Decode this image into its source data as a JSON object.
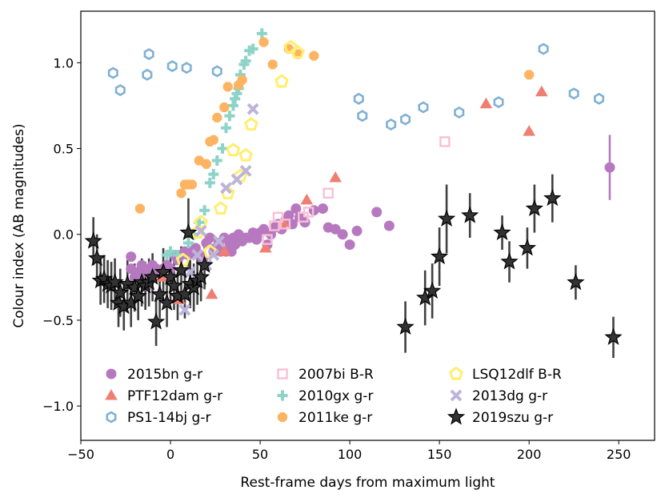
{
  "chart_data": {
    "type": "scatter",
    "title": "",
    "xlabel": "Rest-frame days from maximum light",
    "ylabel": "Colour index (AB magnitudes)",
    "xlim": [
      -50,
      270
    ],
    "ylim": [
      -1.2,
      1.3
    ],
    "xticks": [
      -50,
      0,
      50,
      100,
      150,
      200,
      250
    ],
    "yticks": [
      -1.0,
      -0.5,
      0.0,
      0.5,
      1.0
    ],
    "xtick_labels": [
      "−50",
      "0",
      "50",
      "100",
      "150",
      "200",
      "250"
    ],
    "ytick_labels": [
      "−1.0",
      "−0.5",
      "0.0",
      "0.5",
      "1.0"
    ],
    "grid": false,
    "legend_position": "lower-left",
    "series": [
      {
        "name": "2015bn g-r",
        "marker": "circle",
        "color": "#b679c0",
        "hollow": false,
        "points": [
          [
            -22,
            -0.13
          ],
          [
            -22,
            -0.2
          ],
          [
            -20,
            -0.25
          ],
          [
            -18,
            -0.22
          ],
          [
            -16,
            -0.18
          ],
          [
            -15,
            -0.22
          ],
          [
            -14,
            -0.25
          ],
          [
            -13,
            -0.3
          ],
          [
            -12,
            -0.2
          ],
          [
            -10,
            -0.18
          ],
          [
            -8,
            -0.2
          ],
          [
            -6,
            -0.22
          ],
          [
            -4,
            -0.2
          ],
          [
            -2,
            -0.18
          ],
          [
            0,
            -0.2
          ],
          [
            2,
            -0.12
          ],
          [
            4,
            -0.15
          ],
          [
            6,
            -0.12
          ],
          [
            8,
            -0.1
          ],
          [
            10,
            -0.12
          ],
          [
            12,
            -0.1
          ],
          [
            14,
            -0.08
          ],
          [
            16,
            -0.12
          ],
          [
            18,
            -0.15
          ],
          [
            20,
            -0.05
          ],
          [
            22,
            -0.02
          ],
          [
            24,
            -0.1
          ],
          [
            25,
            -0.08
          ],
          [
            27,
            -0.05
          ],
          [
            28,
            -0.1
          ],
          [
            30,
            -0.02
          ],
          [
            31,
            -0.1
          ],
          [
            33,
            -0.05
          ],
          [
            34,
            -0.1
          ],
          [
            35,
            -0.02
          ],
          [
            36,
            -0.06
          ],
          [
            38,
            0.0
          ],
          [
            40,
            -0.04
          ],
          [
            42,
            -0.02
          ],
          [
            44,
            -0.02
          ],
          [
            46,
            0.01
          ],
          [
            48,
            -0.03
          ],
          [
            50,
            0.01
          ],
          [
            52,
            0.03
          ],
          [
            54,
            -0.06
          ],
          [
            56,
            0.0
          ],
          [
            58,
            0.04
          ],
          [
            60,
            0.06
          ],
          [
            62,
            0.03
          ],
          [
            64,
            0.08
          ],
          [
            66,
            0.11
          ],
          [
            68,
            0.06
          ],
          [
            70,
            0.15
          ],
          [
            72,
            0.1
          ],
          [
            75,
            0.07
          ],
          [
            80,
            0.14
          ],
          [
            85,
            0.15
          ],
          [
            88,
            0.04
          ],
          [
            92,
            0.03
          ],
          [
            96,
            0.0
          ],
          [
            100,
            -0.06
          ],
          [
            104,
            0.02
          ],
          [
            115,
            0.13
          ],
          [
            122,
            0.05
          ],
          [
            245,
            0.39
          ]
        ],
        "errors": [
          [
            245,
            0.19
          ]
        ]
      },
      {
        "name": "PTF12dam g-r",
        "marker": "triangle",
        "color": "#ef7f72",
        "hollow": false,
        "points": [
          [
            -5,
            -0.25
          ],
          [
            5,
            -0.38
          ],
          [
            23,
            -0.35
          ],
          [
            30,
            -0.1
          ],
          [
            53,
            -0.08
          ],
          [
            63,
            0.07
          ],
          [
            76,
            0.2
          ],
          [
            92,
            0.33
          ],
          [
            176,
            0.76
          ],
          [
            200,
            0.6
          ],
          [
            207,
            0.83
          ]
        ]
      },
      {
        "name": "PS1-14bj g-r",
        "marker": "hexagon",
        "color": "#80b1d3",
        "hollow": true,
        "points": [
          [
            -32,
            0.94
          ],
          [
            -28,
            0.84
          ],
          [
            -13,
            0.93
          ],
          [
            -12,
            1.05
          ],
          [
            1,
            0.98
          ],
          [
            9,
            0.97
          ],
          [
            26,
            0.95
          ],
          [
            105,
            0.79
          ],
          [
            107,
            0.69
          ],
          [
            123,
            0.64
          ],
          [
            131,
            0.67
          ],
          [
            141,
            0.74
          ],
          [
            161,
            0.71
          ],
          [
            183,
            0.77
          ],
          [
            208,
            1.08
          ],
          [
            225,
            0.82
          ],
          [
            239,
            0.79
          ]
        ]
      },
      {
        "name": "2007bi B-R",
        "marker": "square",
        "color": "#f9bfd5",
        "hollow": true,
        "points": [
          [
            54,
            -0.03
          ],
          [
            58,
            0.05
          ],
          [
            60,
            0.1
          ],
          [
            64,
            0.06
          ],
          [
            74,
            0.1
          ],
          [
            77,
            0.13
          ],
          [
            88,
            0.24
          ],
          [
            153,
            0.54
          ]
        ]
      },
      {
        "name": "2010gx g-r",
        "marker": "plus",
        "color": "#8dd3c7",
        "hollow": false,
        "points": [
          [
            -2,
            -0.12
          ],
          [
            0,
            -0.1
          ],
          [
            4,
            -0.12
          ],
          [
            10,
            -0.05
          ],
          [
            13,
            0.0
          ],
          [
            16,
            0.07
          ],
          [
            19,
            0.14
          ],
          [
            22,
            0.3
          ],
          [
            24,
            0.35
          ],
          [
            26,
            0.43
          ],
          [
            29,
            0.5
          ],
          [
            31,
            0.62
          ],
          [
            33,
            0.69
          ],
          [
            35,
            0.75
          ],
          [
            36,
            0.79
          ],
          [
            37,
            0.82
          ],
          [
            38,
            0.85
          ],
          [
            39,
            0.93
          ],
          [
            41,
            0.99
          ],
          [
            42,
            1.01
          ],
          [
            44,
            1.07
          ],
          [
            46,
            1.08
          ],
          [
            51,
            1.17
          ]
        ]
      },
      {
        "name": "2011ke g-r",
        "marker": "octagon",
        "color": "#fdb462",
        "hollow": false,
        "points": [
          [
            -17,
            0.15
          ],
          [
            6,
            0.24
          ],
          [
            8,
            0.29
          ],
          [
            10,
            0.29
          ],
          [
            12,
            0.29
          ],
          [
            16,
            0.43
          ],
          [
            20,
            0.41
          ],
          [
            22,
            0.54
          ],
          [
            24,
            0.55
          ],
          [
            26,
            0.68
          ],
          [
            30,
            0.74
          ],
          [
            32,
            0.86
          ],
          [
            38,
            0.87
          ],
          [
            40,
            0.9
          ],
          [
            52,
            1.12
          ],
          [
            57,
            0.99
          ],
          [
            66,
            1.08
          ],
          [
            71,
            1.05
          ],
          [
            80,
            1.04
          ],
          [
            200,
            0.93
          ]
        ]
      },
      {
        "name": "LSQ12dlf B-R",
        "marker": "pentagon",
        "color": "#ffee6f",
        "hollow": true,
        "points": [
          [
            7,
            -0.15
          ],
          [
            15,
            0.01
          ],
          [
            17,
            0.07
          ],
          [
            22,
            -0.1
          ],
          [
            28,
            0.15
          ],
          [
            32,
            0.24
          ],
          [
            35,
            0.49
          ],
          [
            39,
            0.34
          ],
          [
            42,
            0.46
          ],
          [
            45,
            0.64
          ],
          [
            62,
            0.89
          ],
          [
            67,
            1.09
          ],
          [
            71,
            1.06
          ]
        ]
      },
      {
        "name": "2013dg g-r",
        "marker": "x",
        "color": "#bdb4da",
        "hollow": false,
        "points": [
          [
            8,
            -0.44
          ],
          [
            11,
            -0.22
          ],
          [
            15,
            -0.12
          ],
          [
            17,
            0.02
          ],
          [
            20,
            -0.18
          ],
          [
            24,
            -0.12
          ],
          [
            27,
            -0.04
          ],
          [
            31,
            0.27
          ],
          [
            37,
            0.32
          ],
          [
            42,
            0.37
          ],
          [
            46,
            0.73
          ]
        ]
      },
      {
        "name": "2019szu g-r",
        "marker": "star",
        "color": "#1a1a1a",
        "hollow": false,
        "points": [
          [
            -43,
            -0.04
          ],
          [
            -41,
            -0.14
          ],
          [
            -39,
            -0.27
          ],
          [
            -37,
            -0.26
          ],
          [
            -35,
            -0.29
          ],
          [
            -33,
            -0.3
          ],
          [
            -31,
            -0.28
          ],
          [
            -29,
            -0.4
          ],
          [
            -28,
            -0.34
          ],
          [
            -26,
            -0.42
          ],
          [
            -24,
            -0.29
          ],
          [
            -22,
            -0.4
          ],
          [
            -20,
            -0.31
          ],
          [
            -18,
            -0.36
          ],
          [
            -16,
            -0.28
          ],
          [
            -14,
            -0.3
          ],
          [
            -12,
            -0.28
          ],
          [
            -10,
            -0.25
          ],
          [
            -8,
            -0.51
          ],
          [
            -6,
            -0.35
          ],
          [
            -4,
            -0.22
          ],
          [
            -2,
            -0.4
          ],
          [
            0,
            -0.25
          ],
          [
            2,
            -0.3
          ],
          [
            4,
            -0.36
          ],
          [
            6,
            -0.21
          ],
          [
            8,
            -0.35
          ],
          [
            10,
            0.01
          ],
          [
            11,
            -0.29
          ],
          [
            13,
            -0.31
          ],
          [
            15,
            -0.27
          ],
          [
            17,
            -0.25
          ],
          [
            19,
            -0.18
          ],
          [
            131,
            -0.54
          ],
          [
            142,
            -0.37
          ],
          [
            146,
            -0.33
          ],
          [
            150,
            -0.13
          ],
          [
            154,
            0.09
          ],
          [
            167,
            0.11
          ],
          [
            185,
            0.01
          ],
          [
            189,
            -0.16
          ],
          [
            199,
            -0.08
          ],
          [
            203,
            0.15
          ],
          [
            213,
            0.21
          ],
          [
            226,
            -0.28
          ],
          [
            247,
            -0.6
          ]
        ],
        "errors": [
          [
            -43,
            0.14
          ],
          [
            -41,
            0.14
          ],
          [
            -39,
            0.14
          ],
          [
            -37,
            0.14
          ],
          [
            -35,
            0.14
          ],
          [
            -33,
            0.14
          ],
          [
            -31,
            0.14
          ],
          [
            -29,
            0.14
          ],
          [
            -28,
            0.14
          ],
          [
            -26,
            0.14
          ],
          [
            -24,
            0.14
          ],
          [
            -22,
            0.14
          ],
          [
            -20,
            0.14
          ],
          [
            -18,
            0.14
          ],
          [
            -16,
            0.14
          ],
          [
            -14,
            0.14
          ],
          [
            -12,
            0.14
          ],
          [
            -10,
            0.14
          ],
          [
            -8,
            0.14
          ],
          [
            -6,
            0.14
          ],
          [
            -4,
            0.14
          ],
          [
            -2,
            0.14
          ],
          [
            0,
            0.14
          ],
          [
            2,
            0.14
          ],
          [
            4,
            0.14
          ],
          [
            6,
            0.14
          ],
          [
            8,
            0.14
          ],
          [
            10,
            0.2
          ],
          [
            11,
            0.14
          ],
          [
            13,
            0.14
          ],
          [
            15,
            0.14
          ],
          [
            17,
            0.14
          ],
          [
            19,
            0.14
          ],
          [
            131,
            0.15
          ],
          [
            142,
            0.16
          ],
          [
            146,
            0.16
          ],
          [
            150,
            0.17
          ],
          [
            154,
            0.2
          ],
          [
            167,
            0.13
          ],
          [
            185,
            0.1
          ],
          [
            189,
            0.12
          ],
          [
            199,
            0.12
          ],
          [
            203,
            0.14
          ],
          [
            213,
            0.14
          ],
          [
            226,
            0.1
          ],
          [
            247,
            0.12
          ]
        ]
      }
    ]
  }
}
